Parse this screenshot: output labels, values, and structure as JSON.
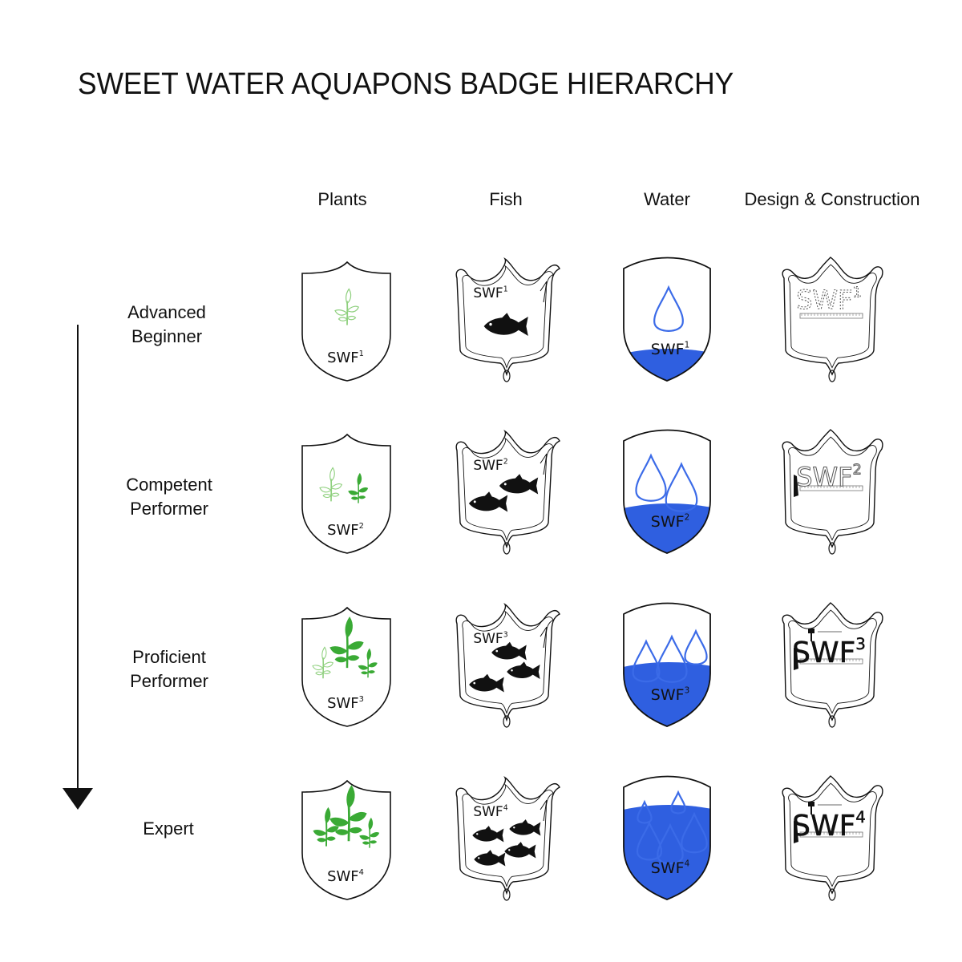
{
  "title": "SWEET WATER AQUAPONS BADGE HIERARCHY",
  "columns": [
    "Plants",
    "Fish",
    "Water",
    "Design & Construction"
  ],
  "levels": [
    {
      "line1": "Advanced",
      "line2": "Beginner",
      "level": 1
    },
    {
      "line1": "Competent",
      "line2": "Performer",
      "level": 2
    },
    {
      "line1": "Proficient",
      "line2": "Performer",
      "level": 3
    },
    {
      "line1": "Expert",
      "line2": "",
      "level": 4
    }
  ],
  "badge_text": "SWF",
  "superscripts": [
    "1",
    "2",
    "3",
    "4"
  ],
  "colors": {
    "plant_green": "#3aaa35",
    "plant_light": "#8fd07e",
    "water_blue": "#2f5fe0",
    "drop_blue": "#3b6be8",
    "outline": "#111111"
  },
  "icons": {
    "plants": "sprout-icon",
    "fish": "fish-icon",
    "water": "water-drop-icon",
    "design": "ruler-icon"
  },
  "arrow": "down-arrow-icon"
}
